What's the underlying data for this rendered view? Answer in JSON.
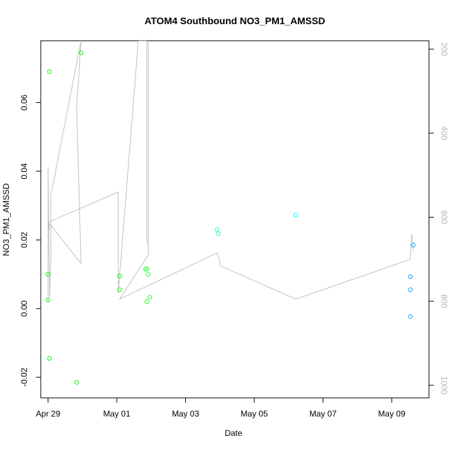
{
  "chart_data": {
    "type": "scatter",
    "title": "ATOM4 Southbound NO3_PM1_AMSSD",
    "xlabel": "Date",
    "ylabel": "NO3_PM1_AMSSD",
    "x_ticks": [
      "Apr 29",
      "May 01",
      "May 03",
      "May 05",
      "May 07",
      "May 09"
    ],
    "y_ticks": [
      "-0.02",
      "0.00",
      "0.02",
      "0.04",
      "0.06"
    ],
    "y2_ticks": [
      "200",
      "400",
      "600",
      "800",
      "1000"
    ],
    "xlim": [
      "2016-04-28 18:54",
      "2016-05-10 02:00"
    ],
    "ylim": [
      -0.026,
      0.078
    ],
    "y2lim": [
      1030,
      180
    ],
    "y2_reversed": true,
    "grid": false,
    "secondary_line_color": "#c0c0c0",
    "series": [
      {
        "color": "#00ff00",
        "points": [
          {
            "x": "2016-04-29 00:00",
            "y": 0.01
          },
          {
            "x": "2016-04-29 00:00",
            "y": 0.0025
          },
          {
            "x": "2016-04-29 01:00",
            "y": 0.069
          },
          {
            "x": "2016-04-29 01:00",
            "y": -0.0145
          },
          {
            "x": "2016-04-29 20:00",
            "y": -0.0215
          },
          {
            "x": "2016-04-29 23:00",
            "y": 0.0745
          },
          {
            "x": "2016-05-01 02:00",
            "y": 0.0095
          },
          {
            "x": "2016-05-01 02:00",
            "y": 0.0055
          }
        ]
      },
      {
        "color": "#33ff33",
        "points": [
          {
            "x": "2016-05-01 20:00",
            "y": 0.0115
          },
          {
            "x": "2016-05-01 21:00",
            "y": 0.0115
          },
          {
            "x": "2016-05-01 21:00",
            "y": 0.002
          },
          {
            "x": "2016-05-01 22:00",
            "y": 0.01
          },
          {
            "x": "2016-05-01 23:00",
            "y": 0.0033
          }
        ]
      },
      {
        "color": "#33ff99",
        "points": [
          {
            "x": "2016-05-03 22:00",
            "y": 0.023
          },
          {
            "x": "2016-05-03 23:00",
            "y": 0.0218
          }
        ]
      },
      {
        "color": "#00ffff",
        "points": [
          {
            "x": "2016-05-06 05:00",
            "y": 0.0272
          }
        ]
      },
      {
        "color": "#00aaff",
        "points": [
          {
            "x": "2016-05-09 13:00",
            "y": 0.0055
          },
          {
            "x": "2016-05-09 13:00",
            "y": 0.0093
          },
          {
            "x": "2016-05-09 13:00",
            "y": -0.0023
          },
          {
            "x": "2016-05-09 15:00",
            "y": 0.0185
          }
        ]
      }
    ],
    "secondary_line": [
      {
        "x": "2016-04-29 00:00",
        "y2": 800
      },
      {
        "x": "2016-04-29 00:00",
        "y2": 480
      },
      {
        "x": "2016-04-29 01:00",
        "y2": 775
      },
      {
        "x": "2016-04-29 01:00",
        "y2": 790
      },
      {
        "x": "2016-04-29 02:00",
        "y2": 700
      },
      {
        "x": "2016-04-29 02:00",
        "y2": 540
      },
      {
        "x": "2016-04-29 03:00",
        "y2": 530
      },
      {
        "x": "2016-04-29 23:00",
        "y2": 180
      },
      {
        "x": "2016-04-29 23:00",
        "y2": 180
      },
      {
        "x": "2016-04-29 20:00",
        "y2": 340
      },
      {
        "x": "2016-04-29 23:00",
        "y2": 710
      },
      {
        "x": "2016-04-29 01:00",
        "y2": 615
      },
      {
        "x": "2016-04-29 01:00",
        "y2": 630
      },
      {
        "x": "2016-04-29 00:00",
        "y2": 608
      },
      {
        "x": "2016-04-29 00:00",
        "y2": 612
      },
      {
        "x": "2016-05-01 01:00",
        "y2": 540
      },
      {
        "x": "2016-05-01 01:00",
        "y2": 780
      },
      {
        "x": "2016-05-01 15:00",
        "y2": 180
      },
      {
        "x": "2016-05-01 15:00",
        "y2": 180
      },
      {
        "x": "2016-05-01 21:00",
        "y2": 180
      },
      {
        "x": "2016-05-01 21:00",
        "y2": 655
      },
      {
        "x": "2016-05-01 22:00",
        "y2": 665
      },
      {
        "x": "2016-05-01 22:00",
        "y2": 180
      },
      {
        "x": "2016-05-01 22:00",
        "y2": 180
      },
      {
        "x": "2016-05-01 22:00",
        "y2": 690
      },
      {
        "x": "2016-05-01 02:00",
        "y2": 795
      },
      {
        "x": "2016-05-03 22:00",
        "y2": 685
      },
      {
        "x": "2016-05-04 00:00",
        "y2": 705
      },
      {
        "x": "2016-05-04 00:00",
        "y2": 715
      },
      {
        "x": "2016-05-06 05:00",
        "y2": 795
      },
      {
        "x": "2016-05-09 13:00",
        "y2": 700
      },
      {
        "x": "2016-05-09 13:00",
        "y2": 685
      },
      {
        "x": "2016-05-09 14:00",
        "y2": 640
      },
      {
        "x": "2016-05-09 15:00",
        "y2": 680
      }
    ]
  }
}
